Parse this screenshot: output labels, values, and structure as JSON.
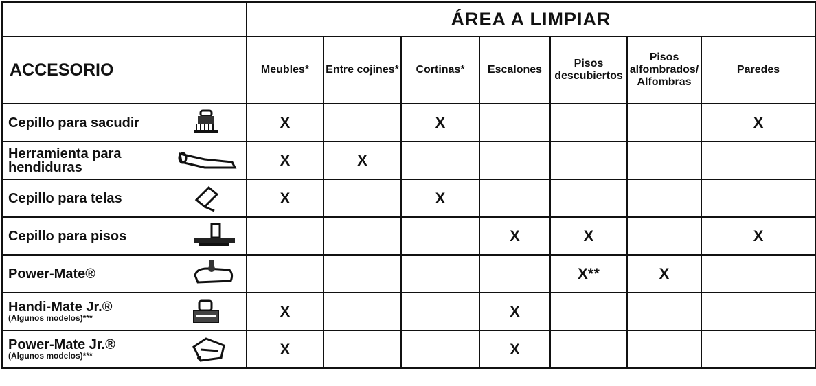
{
  "table": {
    "title": "ÁREA A LIMPIAR",
    "row_header": "ACCESORIO",
    "columns": [
      "Meubles*",
      "Entre cojines*",
      "Cortinas*",
      "Escalones",
      "Pisos descubiertos",
      "Pisos alfombrados/ Alfombras",
      "Paredes"
    ],
    "rows": [
      {
        "name": "Cepillo para sacudir",
        "cells": [
          "X",
          null,
          "X",
          null,
          null,
          null,
          "X"
        ]
      },
      {
        "name": "Herramienta para hendiduras",
        "cells": [
          "X",
          "X",
          null,
          null,
          null,
          null,
          null
        ]
      },
      {
        "name": "Cepillo para telas",
        "cells": [
          "X",
          null,
          "X",
          null,
          null,
          null,
          null
        ]
      },
      {
        "name": "Cepillo para pisos",
        "cells": [
          null,
          null,
          null,
          "X",
          "X",
          null,
          "X"
        ]
      },
      {
        "name": "Power-Mate®",
        "cells": [
          null,
          null,
          null,
          null,
          "X**",
          "X",
          null
        ]
      },
      {
        "name": "Handi-Mate Jr.®",
        "note": "(Algunos modelos)***",
        "cells": [
          "X",
          null,
          null,
          "X",
          null,
          null,
          null
        ]
      },
      {
        "name": "Power-Mate Jr.®",
        "note": "(Algunos modelos)***",
        "cells": [
          "X",
          null,
          null,
          "X",
          null,
          null,
          null
        ]
      }
    ]
  }
}
